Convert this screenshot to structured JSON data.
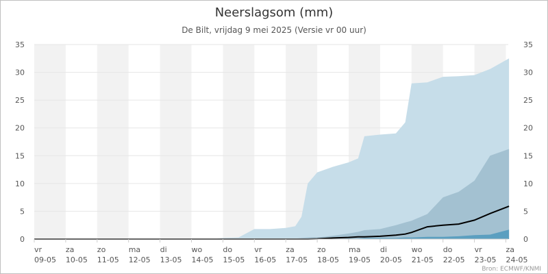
{
  "chart_data": {
    "type": "area",
    "title": "Neerslagsom (mm)",
    "subtitle": "De Bilt, vrijdag 9 mei 2025 (Versie vr 00 uur)",
    "credit": "Bron: ECMWF/KNMI",
    "ylim": [
      0,
      35
    ],
    "yticks": [
      "0",
      "5",
      "10",
      "15",
      "20",
      "25",
      "30",
      "35"
    ],
    "x_categories": [
      {
        "day": "vr",
        "date": "09-05"
      },
      {
        "day": "za",
        "date": "10-05"
      },
      {
        "day": "zo",
        "date": "11-05"
      },
      {
        "day": "ma",
        "date": "12-05"
      },
      {
        "day": "di",
        "date": "13-05"
      },
      {
        "day": "wo",
        "date": "14-05"
      },
      {
        "day": "do",
        "date": "15-05"
      },
      {
        "day": "vr",
        "date": "16-05"
      },
      {
        "day": "za",
        "date": "17-05"
      },
      {
        "day": "zo",
        "date": "18-05"
      },
      {
        "day": "ma",
        "date": "19-05"
      },
      {
        "day": "di",
        "date": "20-05"
      },
      {
        "day": "wo",
        "date": "21-05"
      },
      {
        "day": "do",
        "date": "22-05"
      },
      {
        "day": "vr",
        "date": "23-05"
      },
      {
        "day": "za",
        "date": "24-05"
      }
    ],
    "x": [
      0,
      1,
      2,
      3,
      4,
      5,
      5.5,
      6,
      6.5,
      7,
      7.5,
      8,
      8.3,
      8.5,
      8.7,
      9,
      9.5,
      10,
      10.3,
      10.5,
      11,
      11.5,
      11.8,
      12,
      12.5,
      13,
      13.5,
      14,
      14.5,
      15.1
    ],
    "series": [
      {
        "values": [
          0,
          0,
          0,
          0,
          0,
          0,
          0,
          0.2,
          0.3,
          1.8,
          1.8,
          2.0,
          2.3,
          4.0,
          10.0,
          12.0,
          13.0,
          13.8,
          14.5,
          18.5,
          18.8,
          19.0,
          21.0,
          28.0,
          28.2,
          29.2,
          29.3,
          29.5,
          30.6,
          32.5
        ],
        "color": "#c6dde9"
      },
      {
        "values": [
          0,
          0,
          0,
          0,
          0,
          0,
          0,
          0,
          0,
          0,
          0,
          0,
          0.1,
          0.2,
          0.3,
          0.3,
          0.6,
          1.0,
          1.3,
          1.6,
          1.8,
          2.5,
          3.0,
          3.3,
          4.5,
          7.5,
          8.5,
          10.5,
          15.0,
          16.2
        ],
        "color": "#a3c1d1"
      },
      {
        "values": [
          0,
          0,
          0,
          0,
          0,
          0,
          0,
          0,
          0,
          0,
          0,
          0,
          0,
          0,
          0,
          0,
          0,
          0.1,
          0.1,
          0.2,
          0.2,
          0.2,
          0.3,
          0.3,
          0.4,
          0.4,
          0.5,
          0.7,
          0.8,
          1.7
        ],
        "color": "#5b9fc0"
      },
      {
        "values": [
          0,
          0,
          0,
          0,
          0,
          0,
          0,
          0,
          0,
          0,
          0,
          0,
          0,
          0,
          0,
          0.05,
          0.2,
          0.3,
          0.4,
          0.4,
          0.5,
          0.7,
          0.9,
          1.2,
          2.2,
          2.5,
          2.7,
          3.4,
          4.6,
          5.9
        ],
        "color": "#000000"
      }
    ]
  }
}
